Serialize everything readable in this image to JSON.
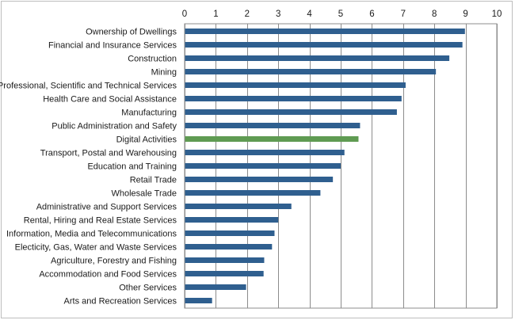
{
  "chart_data": {
    "type": "bar",
    "orientation": "horizontal",
    "title": "",
    "xlabel": "",
    "ylabel": "",
    "xlim": [
      0,
      10
    ],
    "x_ticks": [
      0,
      1,
      2,
      3,
      4,
      5,
      6,
      7,
      8,
      9,
      10
    ],
    "x_axis_position": "top",
    "grid": true,
    "legend": "none",
    "colors": {
      "default": "#2f5f8f",
      "highlight": "#5f9b52"
    },
    "highlight_category": "Digital Activities",
    "categories": [
      "Ownership of Dwellings",
      "Financial and Insurance Services",
      "Construction",
      "Mining",
      "Professional, Scientific and Technical Services",
      "Health Care and Social Assistance",
      "Manufacturing",
      "Public Administration and Safety",
      "Digital Activities",
      "Transport, Postal and Warehousing",
      "Education and Training",
      "Retail Trade",
      "Wholesale Trade",
      "Administrative and Support Services",
      "Rental, Hiring and Real Estate Services",
      "Information, Media and Telecommunications",
      "Electicity, Gas, Water and Waste Services",
      "Agriculture, Forestry and Fishing",
      "Accommodation and Food Services",
      "Other Services",
      "Arts and Recreation Services"
    ],
    "values": [
      8.98,
      8.9,
      8.48,
      8.05,
      7.08,
      6.95,
      6.8,
      5.62,
      5.57,
      5.12,
      5.0,
      4.75,
      4.35,
      3.42,
      3.0,
      2.88,
      2.8,
      2.55,
      2.53,
      1.97,
      0.88
    ]
  }
}
